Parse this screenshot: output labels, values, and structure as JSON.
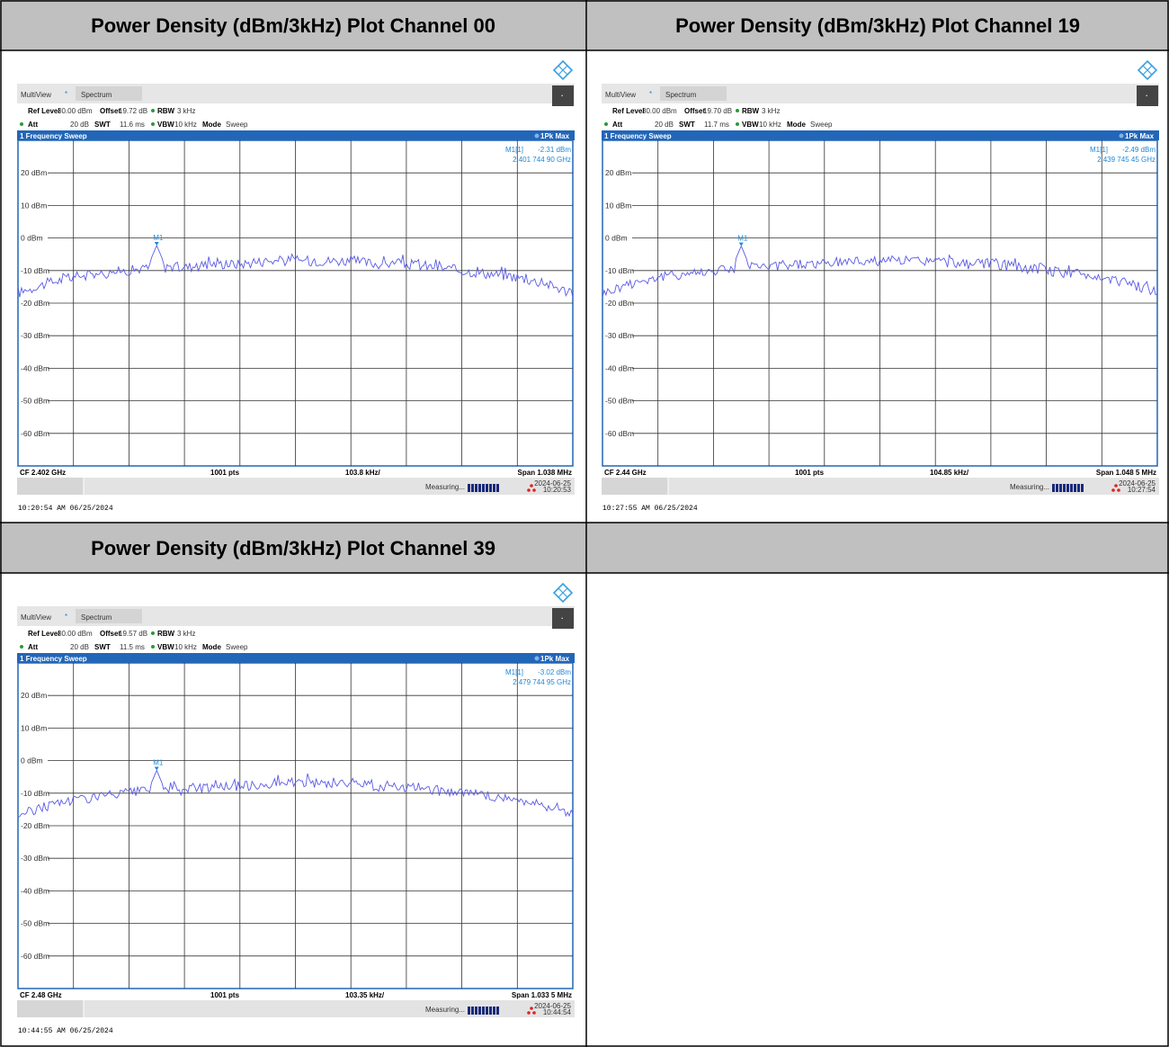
{
  "headers": {
    "ch00": "Power Density (dBm/3kHz) Plot Channel 00",
    "ch19": "Power Density (dBm/3kHz) Plot Channel 19",
    "ch39": "Power Density (dBm/3kHz) Plot Channel 39",
    "empty": ""
  },
  "colors": {
    "header_bg": "#c0c0c0",
    "accent_blue": "#2266b8",
    "marker_blue": "#1e88d8",
    "trace": "#5a5ae6"
  },
  "common": {
    "tab_multiview": "MultiView",
    "tab_spectrum": "Spectrum",
    "ref_level_label": "Ref Level",
    "ref_level_value": "30.00 dBm",
    "offset_label": "Offset",
    "rbw_label": "RBW",
    "rbw_value": "3 kHz",
    "att_label": "Att",
    "att_value": "20 dB",
    "swt_label": "SWT",
    "vbw_label": "VBW",
    "vbw_value": "10 kHz",
    "mode_label": "Mode",
    "mode_value": "Sweep",
    "panel_title": "1 Frequency Sweep",
    "trace_mode": "1Pk Max",
    "marker_label": "M1[1]",
    "marker_tag": "M1",
    "points": "1001 pts",
    "measuring": "Measuring...",
    "y_ticks": [
      "20 dBm",
      "10 dBm",
      "0 dBm",
      "-10 dBm",
      "-20 dBm",
      "-30 dBm",
      "-40 dBm",
      "-50 dBm",
      "-60 dBm"
    ]
  },
  "plots": [
    {
      "offset_value": "19.72 dB",
      "swt_value": "11.6 ms",
      "marker_level": "-2.31 dBm",
      "marker_freq": "2.401 744 90 GHz",
      "cf": "CF 2.402 GHz",
      "div": "103.8 kHz/",
      "span": "Span 1.038 MHz",
      "date": "2024-06-25",
      "time": "10:20:53",
      "footer": "10:20:54 AM  06/25/2024"
    },
    {
      "offset_value": "19.70 dB",
      "swt_value": "11.7 ms",
      "marker_level": "-2.49 dBm",
      "marker_freq": "2.439 745 45 GHz",
      "cf": "CF 2.44 GHz",
      "div": "104.85 kHz/",
      "span": "Span 1.048 5 MHz",
      "date": "2024-06-25",
      "time": "10:27:54",
      "footer": "10:27:55 AM  06/25/2024"
    },
    {
      "offset_value": "19.57 dB",
      "swt_value": "11.5 ms",
      "marker_level": "-3.02 dBm",
      "marker_freq": "2.479 744 95 GHz",
      "cf": "CF 2.48 GHz",
      "div": "103.35 kHz/",
      "span": "Span 1.033 5 MHz",
      "date": "2024-06-25",
      "time": "10:44:54",
      "footer": "10:44:55 AM  06/25/2024"
    }
  ],
  "chart_data": [
    {
      "type": "line",
      "y_range_dbm": [
        -70,
        30
      ],
      "x_range_rel": [
        -0.5,
        0.5
      ],
      "marker": {
        "x": -0.25,
        "y": -2.31
      },
      "series": [
        {
          "x": [
            -0.5,
            -0.45,
            -0.4,
            -0.35,
            -0.3,
            -0.25,
            -0.2,
            -0.15,
            -0.1,
            -0.05,
            0,
            0.05,
            0.1,
            0.15,
            0.2,
            0.25,
            0.3,
            0.35,
            0.4,
            0.45,
            0.5
          ],
          "y": [
            -17,
            -14,
            -12,
            -11,
            -10,
            -9,
            -9,
            -8,
            -8,
            -7,
            -7,
            -7,
            -7,
            -8,
            -8,
            -9,
            -10,
            -11,
            -12,
            -14,
            -17
          ]
        }
      ]
    },
    {
      "type": "line",
      "y_range_dbm": [
        -70,
        30
      ],
      "x_range_rel": [
        -0.5,
        0.5
      ],
      "marker": {
        "x": -0.25,
        "y": -2.49
      },
      "series": [
        {
          "x": [
            -0.5,
            -0.45,
            -0.4,
            -0.35,
            -0.3,
            -0.25,
            -0.2,
            -0.15,
            -0.1,
            -0.05,
            0,
            0.05,
            0.1,
            0.15,
            0.2,
            0.25,
            0.3,
            0.35,
            0.4,
            0.45,
            0.5
          ],
          "y": [
            -17,
            -14,
            -12,
            -11,
            -10,
            -9,
            -9,
            -8,
            -8,
            -7,
            -7,
            -7,
            -7,
            -8,
            -8,
            -9,
            -10,
            -11,
            -12,
            -14,
            -17
          ]
        }
      ]
    },
    {
      "type": "line",
      "y_range_dbm": [
        -70,
        30
      ],
      "x_range_rel": [
        -0.5,
        0.5
      ],
      "marker": {
        "x": -0.25,
        "y": -3.02
      },
      "series": [
        {
          "x": [
            -0.5,
            -0.45,
            -0.4,
            -0.35,
            -0.3,
            -0.25,
            -0.2,
            -0.15,
            -0.1,
            -0.05,
            0,
            0.05,
            0.1,
            0.15,
            0.2,
            0.25,
            0.3,
            0.35,
            0.4,
            0.45,
            0.5
          ],
          "y": [
            -17,
            -14,
            -12,
            -11,
            -10,
            -9,
            -9,
            -8,
            -8,
            -7,
            -7,
            -7,
            -7,
            -8,
            -8,
            -9,
            -10,
            -11,
            -12,
            -14,
            -17
          ]
        }
      ]
    }
  ]
}
